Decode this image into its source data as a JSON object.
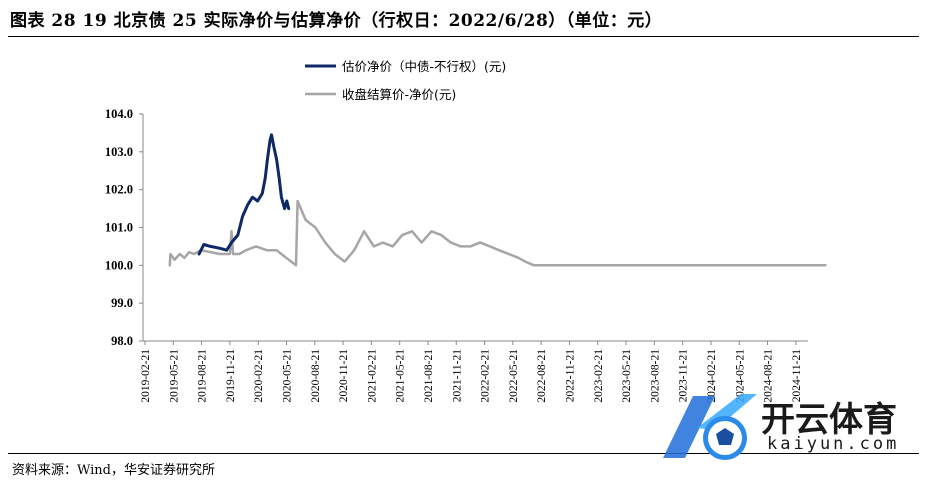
{
  "title": "图表 28 19 北京债 25 实际净价与估算净价（行权日：2022/6/28）（单位：元）",
  "source": "资料来源：Wind，华安证券研究所",
  "watermark": {
    "brand": "开云体育",
    "domain": "kaiyun.com"
  },
  "colors": {
    "series_estimate": "#0d2a66",
    "series_close": "#a6a6a6",
    "axis": "#888888"
  },
  "chart_data": {
    "type": "line",
    "ylim": [
      98.0,
      104.0
    ],
    "y_ticks": [
      "104.0",
      "103.0",
      "102.0",
      "101.0",
      "100.0",
      "99.0",
      "98.0"
    ],
    "x_ticks": [
      "2019-02-21",
      "2019-05-21",
      "2019-08-21",
      "2019-11-21",
      "2020-02-21",
      "2020-05-21",
      "2020-08-21",
      "2020-11-21",
      "2021-02-21",
      "2021-05-21",
      "2021-08-21",
      "2021-11-21",
      "2022-02-21",
      "2022-05-21",
      "2022-08-21",
      "2022-11-21",
      "2023-02-21",
      "2023-05-21",
      "2023-08-21",
      "2023-11-21",
      "2024-02-21",
      "2024-05-21",
      "2024-08-21",
      "2024-11-21"
    ],
    "legend_position": "top-center",
    "grid": false,
    "series": [
      {
        "name": "估价净价（中债-不行权）(元)",
        "points": [
          [
            "2019-08-10",
            100.3
          ],
          [
            "2019-08-25",
            100.55
          ],
          [
            "2019-09-15",
            100.5
          ],
          [
            "2019-10-15",
            100.45
          ],
          [
            "2019-11-05",
            100.4
          ],
          [
            "2019-11-20",
            100.6
          ],
          [
            "2019-12-10",
            100.8
          ],
          [
            "2019-12-25",
            101.3
          ],
          [
            "2020-01-10",
            101.6
          ],
          [
            "2020-01-25",
            101.8
          ],
          [
            "2020-02-10",
            101.7
          ],
          [
            "2020-02-25",
            101.9
          ],
          [
            "2020-03-05",
            102.3
          ],
          [
            "2020-03-12",
            102.8
          ],
          [
            "2020-03-20",
            103.3
          ],
          [
            "2020-03-25",
            103.45
          ],
          [
            "2020-04-02",
            103.1
          ],
          [
            "2020-04-10",
            102.8
          ],
          [
            "2020-04-18",
            102.3
          ],
          [
            "2020-04-25",
            101.8
          ],
          [
            "2020-05-05",
            101.5
          ],
          [
            "2020-05-12",
            101.7
          ],
          [
            "2020-05-18",
            101.5
          ]
        ]
      },
      {
        "name": "收盘结算价-净价(元)",
        "points": [
          [
            "2019-05-10",
            100.0
          ],
          [
            "2019-05-12",
            100.3
          ],
          [
            "2019-05-25",
            100.15
          ],
          [
            "2019-06-10",
            100.3
          ],
          [
            "2019-06-25",
            100.2
          ],
          [
            "2019-07-10",
            100.35
          ],
          [
            "2019-07-25",
            100.3
          ],
          [
            "2019-08-15",
            100.4
          ],
          [
            "2019-09-15",
            100.35
          ],
          [
            "2019-10-15",
            100.3
          ],
          [
            "2019-11-15",
            100.3
          ],
          [
            "2019-11-20",
            100.9
          ],
          [
            "2019-11-25",
            100.3
          ],
          [
            "2019-12-15",
            100.3
          ],
          [
            "2020-01-05",
            100.4
          ],
          [
            "2020-02-05",
            100.5
          ],
          [
            "2020-03-10",
            100.4
          ],
          [
            "2020-04-10",
            100.4
          ],
          [
            "2020-05-10",
            100.2
          ],
          [
            "2020-06-10",
            100.0
          ],
          [
            "2020-06-15",
            101.7
          ],
          [
            "2020-07-10",
            101.2
          ],
          [
            "2020-08-10",
            101.0
          ],
          [
            "2020-09-10",
            100.6
          ],
          [
            "2020-10-10",
            100.3
          ],
          [
            "2020-11-10",
            100.1
          ],
          [
            "2020-12-10",
            100.4
          ],
          [
            "2021-01-10",
            100.9
          ],
          [
            "2021-02-10",
            100.5
          ],
          [
            "2021-03-10",
            100.6
          ],
          [
            "2021-04-10",
            100.5
          ],
          [
            "2021-05-10",
            100.8
          ],
          [
            "2021-06-10",
            100.9
          ],
          [
            "2021-07-10",
            100.6
          ],
          [
            "2021-08-10",
            100.9
          ],
          [
            "2021-09-10",
            100.8
          ],
          [
            "2021-10-10",
            100.6
          ],
          [
            "2021-11-10",
            100.5
          ],
          [
            "2021-12-10",
            100.5
          ],
          [
            "2022-01-10",
            100.6
          ],
          [
            "2022-02-10",
            100.5
          ],
          [
            "2022-03-10",
            100.4
          ],
          [
            "2022-04-10",
            100.3
          ],
          [
            "2022-05-10",
            100.2
          ],
          [
            "2022-06-01",
            100.1
          ],
          [
            "2022-06-28",
            100.0
          ],
          [
            "2024-12-31",
            100.0
          ]
        ]
      }
    ]
  }
}
